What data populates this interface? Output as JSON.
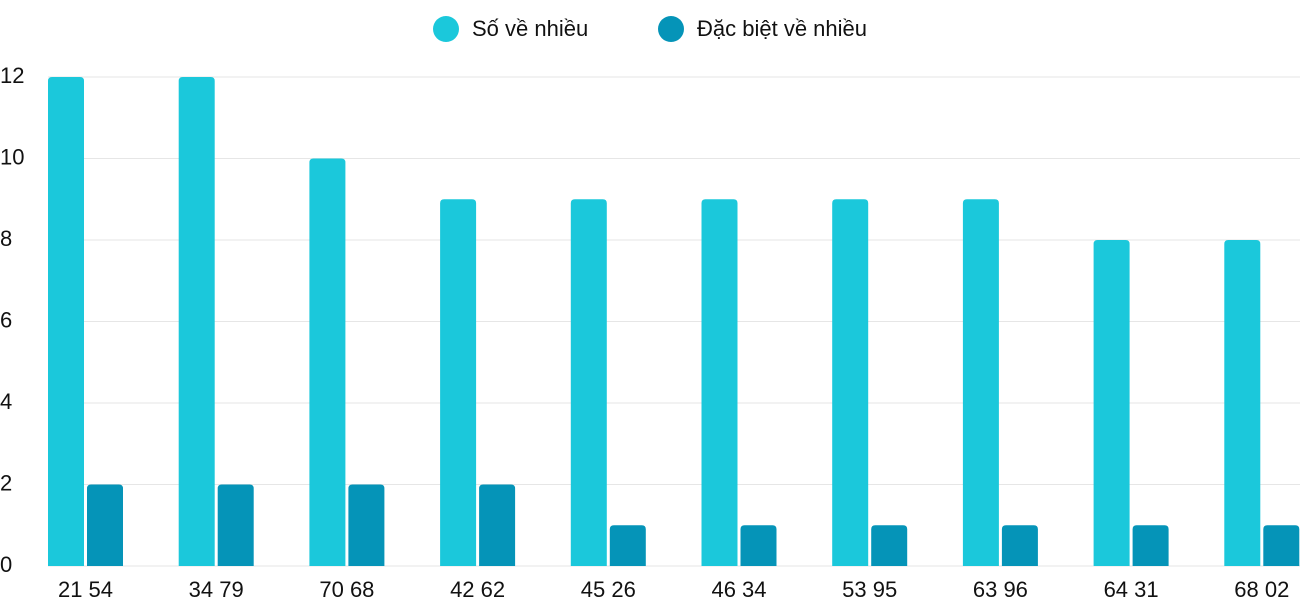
{
  "chart_data": {
    "type": "bar",
    "categories": [
      "21 54",
      "34 79",
      "70 68",
      "42 62",
      "45 26",
      "46 34",
      "53 95",
      "63 96",
      "64 31",
      "68 02"
    ],
    "series": [
      {
        "name": "Số về nhiều",
        "color": "#1bc8db",
        "values": [
          12,
          12,
          10,
          9,
          9,
          9,
          9,
          9,
          8,
          8
        ]
      },
      {
        "name": "Đặc biệt về nhiều",
        "color": "#0594b8",
        "values": [
          2,
          2,
          2,
          2,
          1,
          1,
          1,
          1,
          1,
          1
        ]
      }
    ],
    "ylim": [
      0,
      12
    ],
    "yticks": [
      0,
      2,
      4,
      6,
      8,
      10,
      12
    ],
    "grid": true,
    "legend": "top"
  }
}
